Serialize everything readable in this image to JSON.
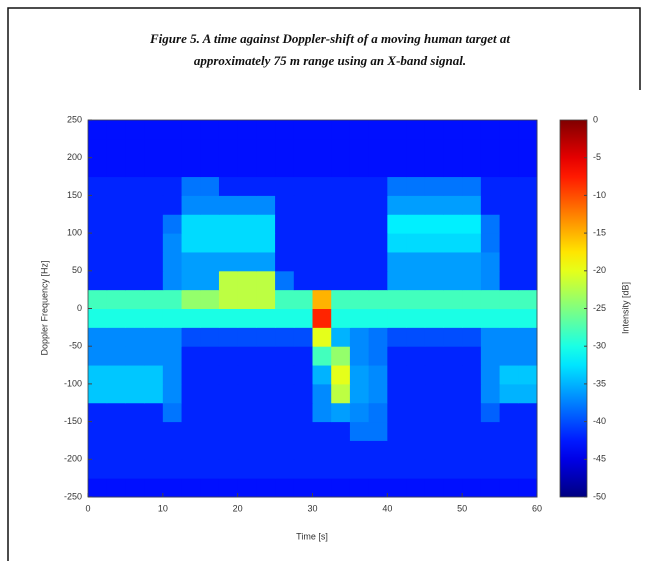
{
  "chart_data": {
    "type": "heatmap",
    "title": [
      "Figure 5. A time against Doppler-shift of a moving human target at",
      "approximately 75 m range using an X-band signal."
    ],
    "xlabel": "Time [s]",
    "ylabel": "Doppler Frequency [Hz]",
    "xlim": [
      0,
      60
    ],
    "xticks": [
      0,
      10,
      20,
      30,
      40,
      50,
      60
    ],
    "ylim": [
      -250,
      250
    ],
    "yticks": [
      -250,
      -200,
      -150,
      -100,
      -50,
      0,
      50,
      100,
      150,
      200,
      250
    ],
    "colormap": "jet",
    "clim": [
      -50,
      0
    ],
    "cticks": [
      0,
      -5,
      -10,
      -15,
      -20,
      -25,
      -30,
      -35,
      -40,
      -45,
      -50
    ],
    "colorbar_label": "Intensity [dB]",
    "xbins": [
      0,
      2.5,
      5,
      7.5,
      10,
      12.5,
      15,
      17.5,
      20,
      22.5,
      25,
      27.5,
      30,
      32.5,
      35,
      37.5,
      40,
      42.5,
      45,
      47.5,
      50,
      52.5,
      55,
      57.5,
      60
    ],
    "ybins": [
      -250,
      -225,
      -200,
      -175,
      -150,
      -125,
      -100,
      -75,
      -50,
      -25,
      0,
      25,
      50,
      75,
      100,
      125,
      150,
      175,
      200,
      225,
      250
    ],
    "z": [
      [
        -43,
        -43,
        -43,
        -43,
        -43,
        -43,
        -43,
        -43,
        -43,
        -43,
        -43,
        -43,
        -43,
        -43,
        -43,
        -43,
        -43,
        -43,
        -43,
        -43,
        -43,
        -43,
        -43,
        -43
      ],
      [
        -42,
        -42,
        -42,
        -42,
        -42,
        -42,
        -42,
        -42,
        -42,
        -42,
        -42,
        -42,
        -42,
        -42,
        -42,
        -42,
        -42,
        -42,
        -42,
        -42,
        -42,
        -42,
        -42,
        -42
      ],
      [
        -42,
        -42,
        -42,
        -42,
        -42,
        -42,
        -42,
        -42,
        -42,
        -42,
        -42,
        -42,
        -42,
        -42,
        -42,
        -42,
        -42,
        -42,
        -42,
        -42,
        -42,
        -42,
        -42,
        -42
      ],
      [
        -42,
        -42,
        -42,
        -42,
        -42,
        -42,
        -42,
        -42,
        -42,
        -42,
        -42,
        -42,
        -42,
        -42,
        -38,
        -38,
        -42,
        -42,
        -42,
        -42,
        -42,
        -42,
        -42,
        -42
      ],
      [
        -42,
        -42,
        -42,
        -42,
        -38,
        -42,
        -42,
        -42,
        -42,
        -42,
        -42,
        -42,
        -37,
        -36,
        -37,
        -38,
        -42,
        -42,
        -42,
        -42,
        -42,
        -39,
        -42,
        -42
      ],
      [
        -34,
        -34,
        -34,
        -34,
        -37,
        -42,
        -42,
        -42,
        -42,
        -42,
        -42,
        -42,
        -37,
        -22,
        -36,
        -37,
        -42,
        -42,
        -42,
        -42,
        -42,
        -37,
        -35,
        -35
      ],
      [
        -34,
        -34,
        -34,
        -34,
        -37,
        -42,
        -42,
        -42,
        -42,
        -42,
        -42,
        -42,
        -35,
        -20,
        -36,
        -37,
        -42,
        -42,
        -42,
        -42,
        -42,
        -37,
        -34,
        -34
      ],
      [
        -37,
        -37,
        -37,
        -37,
        -37,
        -42,
        -42,
        -42,
        -42,
        -42,
        -42,
        -42,
        -28,
        -24,
        -37,
        -38,
        -42,
        -42,
        -42,
        -42,
        -42,
        -37,
        -37,
        -37
      ],
      [
        -37,
        -37,
        -37,
        -37,
        -37,
        -40,
        -40,
        -40,
        -40,
        -40,
        -40,
        -40,
        -20,
        -35,
        -37,
        -38,
        -40,
        -40,
        -40,
        -40,
        -40,
        -37,
        -37,
        -37
      ],
      [
        -30,
        -30,
        -30,
        -30,
        -30,
        -30,
        -30,
        -30,
        -30,
        -30,
        -30,
        -30,
        -8,
        -30,
        -30,
        -30,
        -30,
        -30,
        -30,
        -30,
        -30,
        -30,
        -30,
        -30
      ],
      [
        -28,
        -28,
        -28,
        -28,
        -28,
        -24,
        -24,
        -22,
        -22,
        -22,
        -28,
        -28,
        -15,
        -28,
        -28,
        -28,
        -28,
        -28,
        -28,
        -28,
        -28,
        -28,
        -28,
        -28
      ],
      [
        -42,
        -42,
        -42,
        -42,
        -37,
        -36,
        -36,
        -22,
        -22,
        -22,
        -38,
        -42,
        -42,
        -42,
        -42,
        -42,
        -36,
        -36,
        -36,
        -36,
        -36,
        -37,
        -42,
        -42
      ],
      [
        -42,
        -42,
        -42,
        -42,
        -37,
        -36,
        -36,
        -36,
        -36,
        -36,
        -42,
        -42,
        -42,
        -42,
        -42,
        -42,
        -36,
        -36,
        -36,
        -36,
        -36,
        -37,
        -42,
        -42
      ],
      [
        -42,
        -42,
        -42,
        -42,
        -37,
        -33,
        -33,
        -33,
        -33,
        -33,
        -42,
        -42,
        -42,
        -42,
        -42,
        -42,
        -33,
        -33,
        -33,
        -33,
        -33,
        -38,
        -42,
        -42
      ],
      [
        -42,
        -42,
        -42,
        -42,
        -38,
        -33,
        -33,
        -33,
        -33,
        -33,
        -42,
        -42,
        -42,
        -42,
        -42,
        -42,
        -32,
        -32,
        -32,
        -32,
        -32,
        -38,
        -42,
        -42
      ],
      [
        -42,
        -42,
        -42,
        -42,
        -42,
        -37,
        -37,
        -37,
        -37,
        -37,
        -42,
        -42,
        -42,
        -42,
        -42,
        -42,
        -36,
        -36,
        -36,
        -36,
        -36,
        -42,
        -42,
        -42
      ],
      [
        -42,
        -42,
        -42,
        -42,
        -42,
        -38,
        -38,
        -42,
        -42,
        -42,
        -42,
        -42,
        -42,
        -42,
        -42,
        -42,
        -38,
        -38,
        -38,
        -38,
        -38,
        -42,
        -42,
        -42
      ],
      [
        -43,
        -43,
        -43,
        -43,
        -43,
        -43,
        -43,
        -43,
        -43,
        -43,
        -43,
        -43,
        -43,
        -43,
        -43,
        -43,
        -43,
        -43,
        -43,
        -43,
        -43,
        -43,
        -43,
        -43
      ],
      [
        -43,
        -43,
        -43,
        -43,
        -43,
        -43,
        -43,
        -43,
        -43,
        -43,
        -43,
        -43,
        -43,
        -43,
        -43,
        -43,
        -43,
        -43,
        -43,
        -43,
        -43,
        -43,
        -43,
        -43
      ],
      [
        -43,
        -43,
        -43,
        -43,
        -43,
        -43,
        -43,
        -43,
        -43,
        -43,
        -43,
        -43,
        -43,
        -43,
        -43,
        -43,
        -43,
        -43,
        -43,
        -43,
        -43,
        -43,
        -43,
        -43
      ]
    ]
  }
}
